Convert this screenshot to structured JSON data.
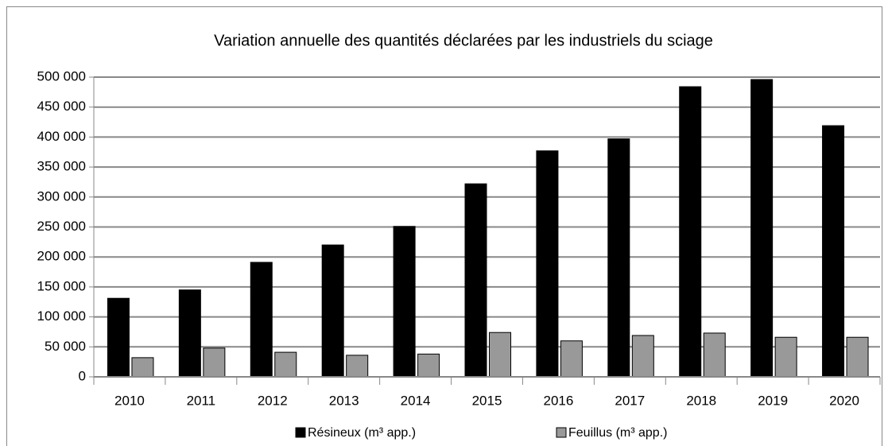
{
  "chart_data": {
    "type": "bar",
    "title": "Variation annuelle des quantités déclarées par les industriels du sciage",
    "categories": [
      "2010",
      "2011",
      "2012",
      "2013",
      "2014",
      "2015",
      "2016",
      "2017",
      "2018",
      "2019",
      "2020"
    ],
    "series": [
      {
        "name": "Résineux (m³ app.)",
        "color": "#000000",
        "values": [
          131000,
          145000,
          191000,
          220000,
          251000,
          322000,
          377000,
          397000,
          484000,
          496000,
          419000
        ]
      },
      {
        "name": "Feuillus (m³ app.)",
        "color": "#999999",
        "values": [
          32000,
          48000,
          41000,
          36000,
          38000,
          74000,
          60000,
          69000,
          73000,
          66000,
          66000
        ]
      }
    ],
    "ylim": [
      0,
      500000
    ],
    "yticks": [
      0,
      {
        "value": 50000,
        "label": "50 000"
      },
      {
        "value": 100000,
        "label": "100 000"
      },
      {
        "value": 150000,
        "label": "150 000"
      },
      {
        "value": 200000,
        "label": "200 000"
      },
      {
        "value": 250000,
        "label": "250 000"
      },
      {
        "value": 300000,
        "label": "300 000"
      },
      {
        "value": 350000,
        "label": "350 000"
      },
      {
        "value": 400000,
        "label": "400 000"
      },
      {
        "value": 450000,
        "label": "450 000"
      },
      {
        "value": 500000,
        "label": "500 000"
      }
    ],
    "grid": true,
    "legend": "bottom"
  }
}
